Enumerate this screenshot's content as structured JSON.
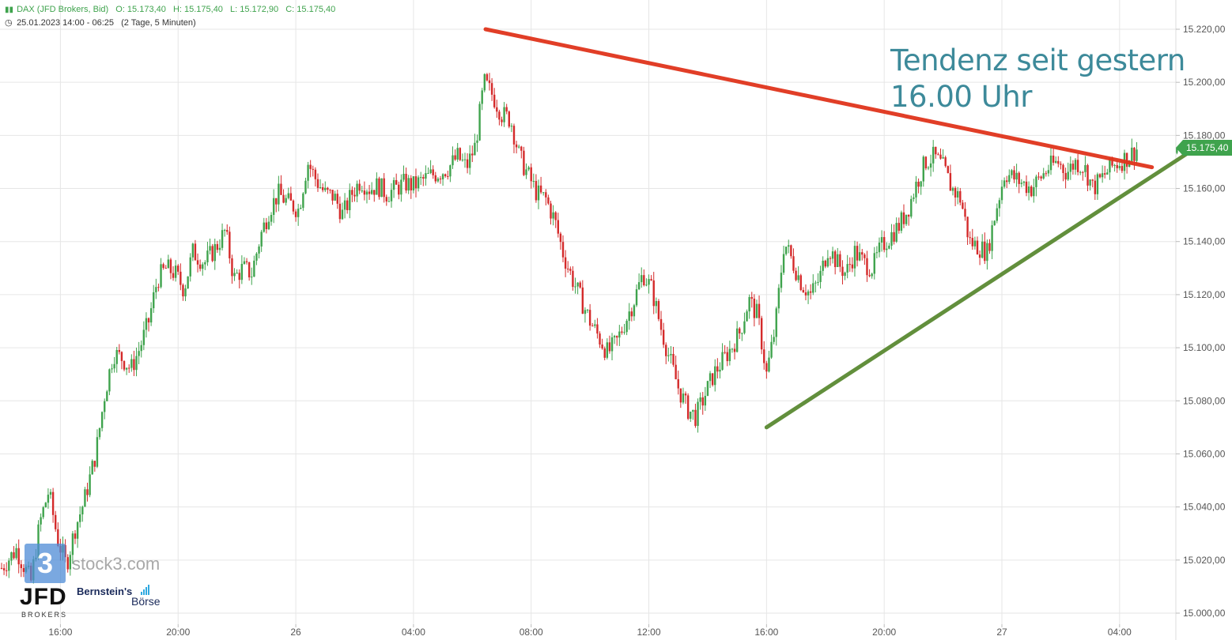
{
  "header": {
    "instrument": "DAX (JFD Brokers, Bid)",
    "open": "O: 15.173,40",
    "high": "H: 15.175,40",
    "low": "L: 15.172,90",
    "close": "C: 15.175,40",
    "range": "25.01.2023 14:00 - 06:25",
    "span": "(2 Tage, 5 Minuten)"
  },
  "annotation": {
    "line1": "Tendenz seit gestern",
    "line2": "16.00 Uhr"
  },
  "price_flag": "15.175,40",
  "logos": {
    "stock3": "stock3.com",
    "stock3_mark": "3",
    "jfd": "JFD",
    "jfd_sub": "BROKERS",
    "bernstein": "Bernstein's",
    "boerse": "Börse"
  },
  "colors": {
    "up": "#3fa34d",
    "down": "#d42a2a",
    "resistance": "#e0341c",
    "support": "#5a8a32",
    "grid": "#e6e6e6",
    "annotation": "#3d8a9a"
  },
  "chart_data": {
    "type": "candlestick",
    "interval": "5 Minuten",
    "ylim": [
      15000,
      15232
    ],
    "yticks": [
      15000,
      15020,
      15040,
      15060,
      15080,
      15100,
      15120,
      15140,
      15160,
      15180,
      15200,
      15220
    ],
    "ytick_labels": [
      "15.000,00",
      "15.020,00",
      "15.040,00",
      "15.060,00",
      "15.080,00",
      "15.100,00",
      "15.120,00",
      "15.140,00",
      "15.160,00",
      "15.180,00",
      "15.200,00",
      "15.220,00"
    ],
    "xlim_hours": [
      14.0,
      54.8
    ],
    "xticks": [
      {
        "label": "16:00",
        "hour": 16
      },
      {
        "label": "20:00",
        "hour": 20
      },
      {
        "label": "26",
        "hour": 24
      },
      {
        "label": "04:00",
        "hour": 28
      },
      {
        "label": "08:00",
        "hour": 32
      },
      {
        "label": "12:00",
        "hour": 36
      },
      {
        "label": "16:00",
        "hour": 40
      },
      {
        "label": "20:00",
        "hour": 44
      },
      {
        "label": "27",
        "hour": 48
      },
      {
        "label": "04:00",
        "hour": 52
      }
    ],
    "path": [
      [
        14.0,
        15017
      ],
      [
        14.5,
        15024
      ],
      [
        15.0,
        15012
      ],
      [
        15.3,
        15034
      ],
      [
        15.6,
        15046
      ],
      [
        15.9,
        15028
      ],
      [
        16.2,
        15018
      ],
      [
        16.5,
        15032
      ],
      [
        16.8,
        15042
      ],
      [
        17.2,
        15060
      ],
      [
        17.5,
        15082
      ],
      [
        17.8,
        15098
      ],
      [
        18.1,
        15096
      ],
      [
        18.4,
        15092
      ],
      [
        18.7,
        15100
      ],
      [
        19.0,
        15110
      ],
      [
        19.3,
        15126
      ],
      [
        19.6,
        15130
      ],
      [
        19.9,
        15128
      ],
      [
        20.2,
        15122
      ],
      [
        20.5,
        15136
      ],
      [
        20.9,
        15132
      ],
      [
        21.3,
        15138
      ],
      [
        21.6,
        15144
      ],
      [
        21.9,
        15126
      ],
      [
        22.2,
        15130
      ],
      [
        22.5,
        15128
      ],
      [
        22.8,
        15142
      ],
      [
        23.1,
        15152
      ],
      [
        23.4,
        15158
      ],
      [
        23.7,
        15155
      ],
      [
        24.1,
        15152
      ],
      [
        24.4,
        15170
      ],
      [
        24.7,
        15163
      ],
      [
        25.0,
        15158
      ],
      [
        25.3,
        15157
      ],
      [
        25.6,
        15150
      ],
      [
        25.9,
        15158
      ],
      [
        26.2,
        15163
      ],
      [
        26.5,
        15160
      ],
      [
        26.8,
        15161
      ],
      [
        27.1,
        15158
      ],
      [
        27.4,
        15160
      ],
      [
        27.7,
        15162
      ],
      [
        28.0,
        15161
      ],
      [
        28.3,
        15163
      ],
      [
        28.6,
        15165
      ],
      [
        28.9,
        15166
      ],
      [
        29.2,
        15168
      ],
      [
        29.5,
        15172
      ],
      [
        29.8,
        15168
      ],
      [
        30.1,
        15176
      ],
      [
        30.4,
        15200
      ],
      [
        30.7,
        15195
      ],
      [
        31.0,
        15188
      ],
      [
        31.3,
        15186
      ],
      [
        31.6,
        15172
      ],
      [
        31.9,
        15165
      ],
      [
        32.2,
        15158
      ],
      [
        32.5,
        15156
      ],
      [
        32.8,
        15148
      ],
      [
        33.1,
        15135
      ],
      [
        33.4,
        15126
      ],
      [
        33.7,
        15118
      ],
      [
        34.0,
        15110
      ],
      [
        34.3,
        15104
      ],
      [
        34.6,
        15098
      ],
      [
        34.9,
        15102
      ],
      [
        35.2,
        15110
      ],
      [
        35.5,
        15118
      ],
      [
        35.8,
        15128
      ],
      [
        36.1,
        15122
      ],
      [
        36.4,
        15108
      ],
      [
        36.7,
        15096
      ],
      [
        37.0,
        15085
      ],
      [
        37.3,
        15077
      ],
      [
        37.6,
        15074
      ],
      [
        37.9,
        15082
      ],
      [
        38.2,
        15090
      ],
      [
        38.5,
        15095
      ],
      [
        38.8,
        15100
      ],
      [
        39.1,
        15106
      ],
      [
        39.4,
        15118
      ],
      [
        39.7,
        15112
      ],
      [
        40.0,
        15090
      ],
      [
        40.3,
        15108
      ],
      [
        40.6,
        15140
      ],
      [
        40.9,
        15132
      ],
      [
        41.2,
        15124
      ],
      [
        41.5,
        15120
      ],
      [
        41.8,
        15126
      ],
      [
        42.1,
        15138
      ],
      [
        42.4,
        15132
      ],
      [
        42.7,
        15128
      ],
      [
        43.0,
        15136
      ],
      [
        43.3,
        15132
      ],
      [
        43.6,
        15130
      ],
      [
        43.9,
        15138
      ],
      [
        44.2,
        15142
      ],
      [
        44.5,
        15146
      ],
      [
        44.8,
        15152
      ],
      [
        45.1,
        15162
      ],
      [
        45.4,
        15170
      ],
      [
        45.7,
        15172
      ],
      [
        46.0,
        15168
      ],
      [
        46.3,
        15160
      ],
      [
        46.6,
        15156
      ],
      [
        46.9,
        15140
      ],
      [
        47.2,
        15138
      ],
      [
        47.5,
        15136
      ],
      [
        47.8,
        15152
      ],
      [
        48.1,
        15166
      ],
      [
        48.4,
        15164
      ],
      [
        48.7,
        15162
      ],
      [
        49.0,
        15160
      ],
      [
        49.3,
        15164
      ],
      [
        49.6,
        15168
      ],
      [
        49.9,
        15170
      ],
      [
        50.2,
        15166
      ],
      [
        50.5,
        15170
      ],
      [
        50.8,
        15168
      ],
      [
        51.1,
        15160
      ],
      [
        51.4,
        15164
      ],
      [
        51.7,
        15168
      ],
      [
        52.0,
        15170
      ],
      [
        52.3,
        15172
      ],
      [
        52.6,
        15175
      ]
    ],
    "candles": [
      {
        "t": 53.95,
        "o": 15173.4,
        "h": 15175.4,
        "l": 15172.9,
        "c": 15175.4
      }
    ],
    "trendlines": [
      {
        "role": "resistance",
        "from": [
          30.45,
          15220
        ],
        "to": [
          53.1,
          15168
        ]
      },
      {
        "role": "support",
        "from": [
          40.0,
          15070
        ],
        "to": [
          54.55,
          15175
        ]
      }
    ],
    "last_price": 15175.4
  }
}
